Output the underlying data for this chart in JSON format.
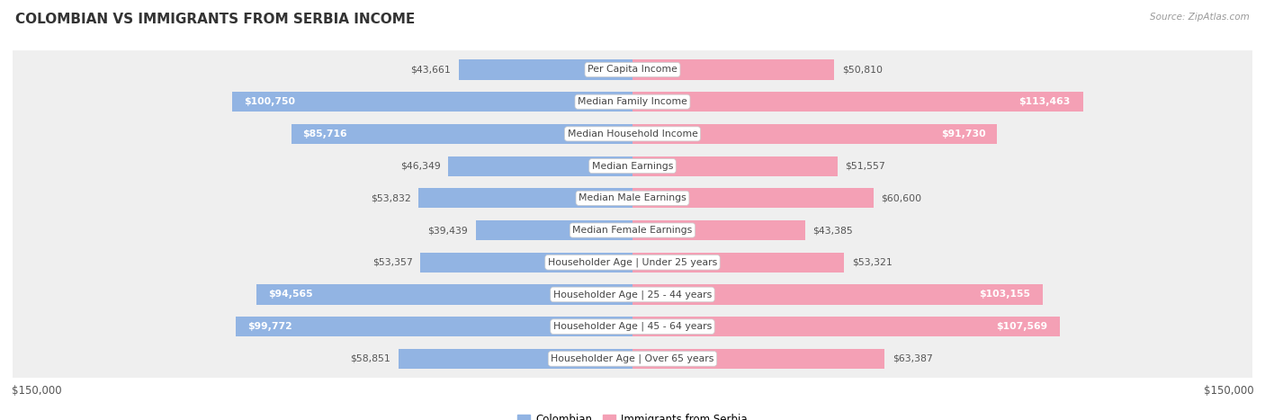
{
  "title": "COLOMBIAN VS IMMIGRANTS FROM SERBIA INCOME",
  "source": "Source: ZipAtlas.com",
  "categories": [
    "Per Capita Income",
    "Median Family Income",
    "Median Household Income",
    "Median Earnings",
    "Median Male Earnings",
    "Median Female Earnings",
    "Householder Age | Under 25 years",
    "Householder Age | 25 - 44 years",
    "Householder Age | 45 - 64 years",
    "Householder Age | Over 65 years"
  ],
  "colombian": [
    43661,
    100750,
    85716,
    46349,
    53832,
    39439,
    53357,
    94565,
    99772,
    58851
  ],
  "serbia": [
    50810,
    113463,
    91730,
    51557,
    60600,
    43385,
    53321,
    103155,
    107569,
    63387
  ],
  "max_val": 150000,
  "color_colombian": "#92b4e3",
  "color_serbia": "#f4a0b5",
  "bg_color": "#ffffff",
  "row_bg_light": "#f0f0f0",
  "row_bg_dark": "#e8e8e8",
  "title_fontsize": 11,
  "label_fontsize": 7.8,
  "value_fontsize": 7.8,
  "legend_fontsize": 8.5
}
